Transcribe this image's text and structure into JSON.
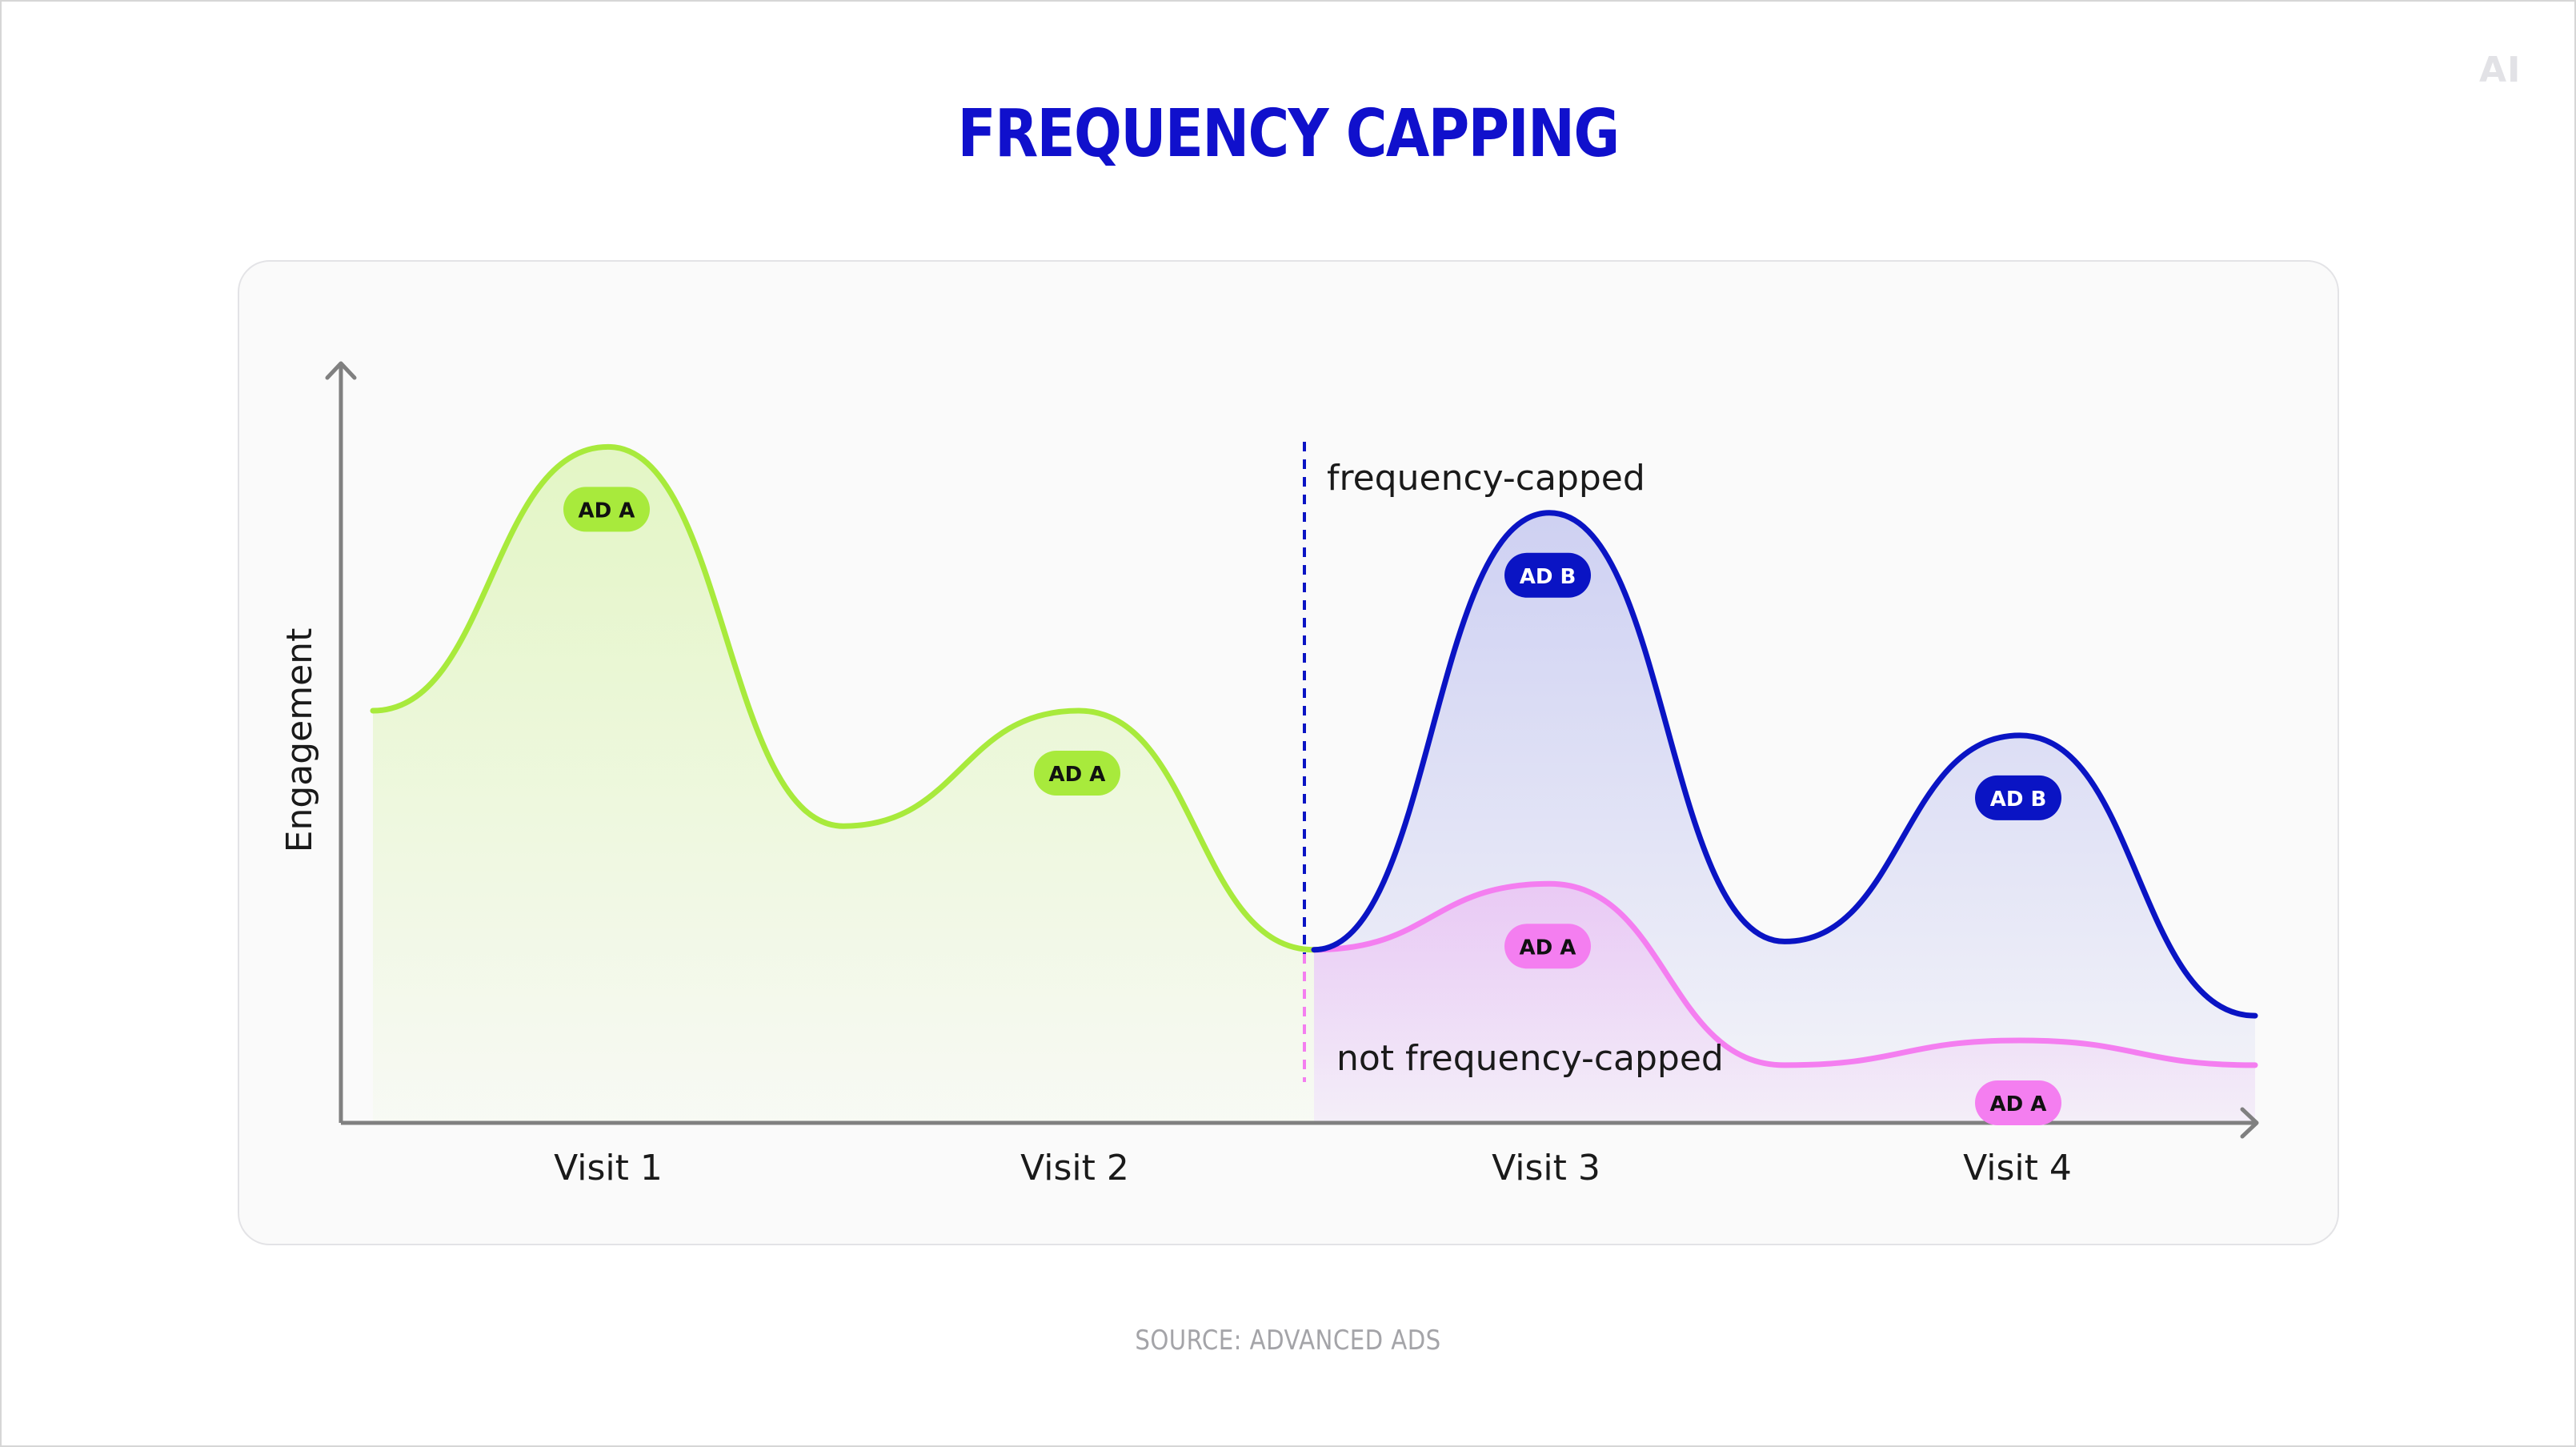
{
  "logo": "AI",
  "title": "FREQUENCY CAPPING",
  "source": "SOURCE: ADVANCED ADS",
  "colors": {
    "title": "#1010cc",
    "ad_a_green": "#a8ea3c",
    "ad_b_blue": "#0a14c4",
    "ad_a_pink": "#f47ef0",
    "axis": "#808080"
  },
  "chart_data": {
    "type": "line",
    "ylabel": "Engagement",
    "categories": [
      "Visit 1",
      "Visit 2",
      "Visit 3",
      "Visit 4"
    ],
    "cap_labels": {
      "capped": "frequency-capped",
      "not_capped": "not frequency-capped"
    },
    "series": [
      {
        "key": "before",
        "color": "#a8ea3c",
        "x": [
          -0.5,
          0,
          0.5,
          1,
          1.5
        ],
        "y": [
          50,
          82,
          36,
          50,
          21
        ]
      },
      {
        "key": "capped",
        "color": "#0a14c4",
        "x": [
          1.5,
          2,
          2.5,
          3,
          3.5
        ],
        "y": [
          21,
          74,
          22,
          47,
          13
        ]
      },
      {
        "key": "not_capped",
        "color": "#f47ef0",
        "x": [
          1.5,
          2,
          2.5,
          3,
          3.5
        ],
        "y": [
          21,
          29,
          7,
          10,
          7
        ]
      }
    ],
    "badges": [
      {
        "text": "AD A",
        "kind": "a_green",
        "x": 0,
        "y": 82
      },
      {
        "text": "AD A",
        "kind": "a_green",
        "x": 1,
        "y": 50
      },
      {
        "text": "AD B",
        "kind": "b_blue",
        "x": 2,
        "y": 74
      },
      {
        "text": "AD B",
        "kind": "b_blue",
        "x": 3,
        "y": 47
      },
      {
        "text": "AD A",
        "kind": "a_pink",
        "x": 2,
        "y": 29
      },
      {
        "text": "AD A",
        "kind": "a_pink",
        "x": 3,
        "y": 10
      }
    ]
  }
}
